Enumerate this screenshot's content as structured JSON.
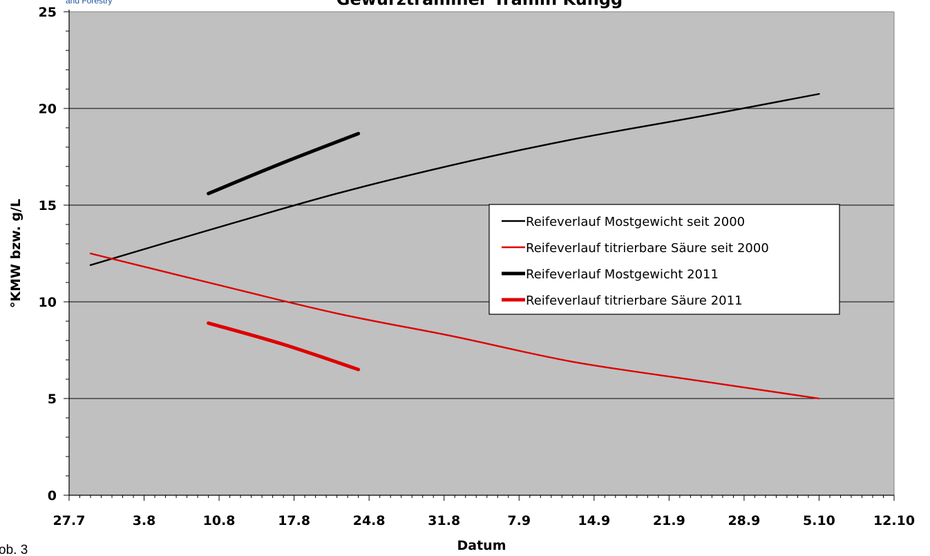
{
  "page": {
    "logo_fragment": "and Forestry",
    "footnote_fragment": "ob. 3"
  },
  "colors": {
    "plot_background": "#c0c0c0",
    "gridline": "#000000",
    "mostgewicht": "#000000",
    "saeure": "#dd0000"
  },
  "chart_data": {
    "type": "line",
    "title": "Gewürztraminer Tramin Kungg",
    "xlabel": "Datum",
    "ylabel": "°KMW bzw. g/L",
    "ylim": [
      0,
      25
    ],
    "yticks": [
      0,
      5,
      10,
      15,
      20,
      25
    ],
    "xlim": [
      "2011-07-27",
      "2011-10-12"
    ],
    "xticks": [
      {
        "date": "2011-07-27",
        "label": "27.7"
      },
      {
        "date": "2011-08-03",
        "label": "3.8"
      },
      {
        "date": "2011-08-10",
        "label": "10.8"
      },
      {
        "date": "2011-08-17",
        "label": "17.8"
      },
      {
        "date": "2011-08-24",
        "label": "24.8"
      },
      {
        "date": "2011-08-31",
        "label": "31.8"
      },
      {
        "date": "2011-09-07",
        "label": "7.9"
      },
      {
        "date": "2011-09-14",
        "label": "14.9"
      },
      {
        "date": "2011-09-21",
        "label": "21.9"
      },
      {
        "date": "2011-09-28",
        "label": "28.9"
      },
      {
        "date": "2011-10-05",
        "label": "5.10"
      },
      {
        "date": "2011-10-12",
        "label": "12.10"
      }
    ],
    "grid": "horizontal",
    "legend_position": "center-right",
    "series": [
      {
        "name": "Reifeverlauf Mostgewicht seit 2000",
        "color": "#000000",
        "style": "thin",
        "points": [
          {
            "x": "2011-07-29",
            "y": 11.9
          },
          {
            "x": "2011-08-09",
            "y": 13.7
          },
          {
            "x": "2011-08-21",
            "y": 15.6
          },
          {
            "x": "2011-09-01",
            "y": 17.1
          },
          {
            "x": "2011-09-12",
            "y": 18.4
          },
          {
            "x": "2011-09-24",
            "y": 19.6
          },
          {
            "x": "2011-10-05",
            "y": 20.75
          }
        ]
      },
      {
        "name": "Reifeverlauf titrierbare Säure seit 2000",
        "color": "#dd0000",
        "style": "thin",
        "points": [
          {
            "x": "2011-07-29",
            "y": 12.5
          },
          {
            "x": "2011-08-09",
            "y": 11.0
          },
          {
            "x": "2011-08-21",
            "y": 9.4
          },
          {
            "x": "2011-09-01",
            "y": 8.2
          },
          {
            "x": "2011-09-12",
            "y": 6.9
          },
          {
            "x": "2011-09-24",
            "y": 5.9
          },
          {
            "x": "2011-10-05",
            "y": 5.0
          }
        ]
      },
      {
        "name": "Reifeverlauf Mostgewicht 2011",
        "color": "#000000",
        "style": "thick",
        "points": [
          {
            "x": "2011-08-09",
            "y": 15.6
          },
          {
            "x": "2011-08-16",
            "y": 17.2
          },
          {
            "x": "2011-08-23",
            "y": 18.7
          }
        ]
      },
      {
        "name": "Reifeverlauf titrierbare Säure 2011",
        "color": "#dd0000",
        "style": "thick",
        "points": [
          {
            "x": "2011-08-09",
            "y": 8.9
          },
          {
            "x": "2011-08-16",
            "y": 7.8
          },
          {
            "x": "2011-08-23",
            "y": 6.5
          }
        ]
      }
    ]
  }
}
